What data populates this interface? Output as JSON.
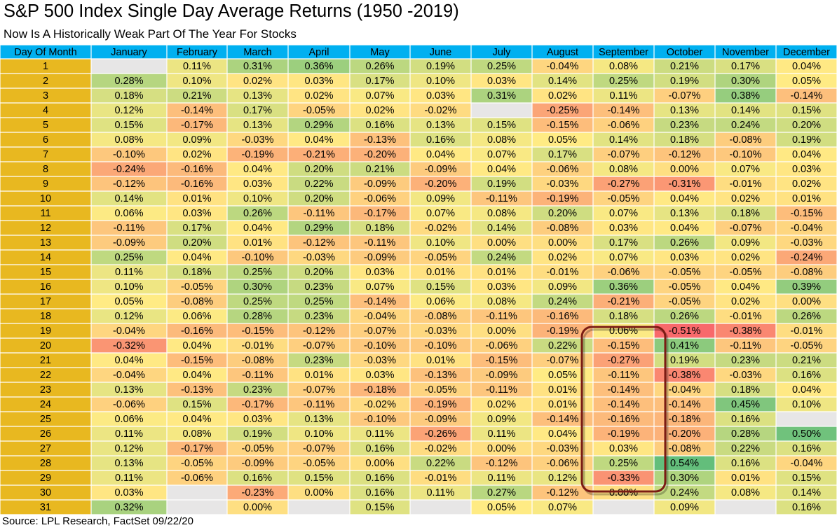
{
  "title": "S&P 500 Index Single Day Average Returns (1950 -2019)",
  "subtitle": "Now Is A Historically Weak Part Of The Year For Stocks",
  "source": "Source: LPL Research, FactSet 09/22/20",
  "colors": {
    "header_bg": "#00b0f0",
    "day_bg": "#e8b820",
    "empty_bg": "#e7e6e6",
    "scale_low": "#f8696b",
    "scale_mid": "#ffeb84",
    "scale_high": "#63be7b",
    "highlight_border": "#7b1c14"
  },
  "chart_data": {
    "type": "table",
    "row_header_label": "Day Of Month",
    "columns": [
      "January",
      "February",
      "March",
      "April",
      "May",
      "June",
      "July",
      "August",
      "September",
      "October",
      "November",
      "December"
    ],
    "days": [
      "1",
      "2",
      "3",
      "4",
      "5",
      "6",
      "7",
      "8",
      "9",
      "10",
      "11",
      "12",
      "13",
      "14",
      "15",
      "16",
      "17",
      "18",
      "19",
      "20",
      "21",
      "22",
      "23",
      "24",
      "25",
      "26",
      "27",
      "28",
      "29",
      "30",
      "31"
    ],
    "rows": [
      [
        "",
        "0.11%",
        "0.31%",
        "0.36%",
        "0.26%",
        "0.19%",
        "0.25%",
        "-0.04%",
        "0.08%",
        "0.21%",
        "0.17%",
        "0.04%"
      ],
      [
        "0.28%",
        "0.10%",
        "0.02%",
        "0.03%",
        "0.17%",
        "0.10%",
        "0.03%",
        "0.14%",
        "0.25%",
        "0.19%",
        "0.30%",
        "0.05%"
      ],
      [
        "0.18%",
        "0.21%",
        "0.13%",
        "0.02%",
        "0.07%",
        "0.03%",
        "0.31%",
        "0.02%",
        "0.11%",
        "-0.07%",
        "0.38%",
        "-0.14%"
      ],
      [
        "0.12%",
        "-0.14%",
        "0.17%",
        "-0.05%",
        "0.02%",
        "-0.02%",
        "",
        "-0.25%",
        "-0.14%",
        "0.13%",
        "0.14%",
        "0.15%"
      ],
      [
        "0.15%",
        "-0.17%",
        "0.13%",
        "0.29%",
        "0.16%",
        "0.13%",
        "0.15%",
        "-0.15%",
        "-0.06%",
        "0.23%",
        "0.24%",
        "0.20%"
      ],
      [
        "0.08%",
        "0.09%",
        "-0.03%",
        "0.04%",
        "-0.13%",
        "0.16%",
        "0.08%",
        "0.05%",
        "0.14%",
        "0.18%",
        "-0.08%",
        "0.19%"
      ],
      [
        "-0.10%",
        "0.02%",
        "-0.19%",
        "-0.21%",
        "-0.20%",
        "0.04%",
        "0.07%",
        "0.17%",
        "-0.07%",
        "-0.12%",
        "-0.10%",
        "0.04%"
      ],
      [
        "-0.24%",
        "-0.16%",
        "0.04%",
        "0.20%",
        "0.21%",
        "-0.09%",
        "0.04%",
        "-0.06%",
        "0.08%",
        "0.00%",
        "0.07%",
        "0.03%"
      ],
      [
        "-0.12%",
        "-0.16%",
        "0.03%",
        "0.22%",
        "-0.09%",
        "-0.20%",
        "0.19%",
        "-0.03%",
        "-0.27%",
        "-0.31%",
        "-0.01%",
        "0.02%"
      ],
      [
        "0.14%",
        "0.01%",
        "0.10%",
        "0.20%",
        "-0.06%",
        "0.09%",
        "-0.11%",
        "-0.19%",
        "-0.05%",
        "0.04%",
        "0.02%",
        "0.01%"
      ],
      [
        "0.06%",
        "0.03%",
        "0.26%",
        "-0.11%",
        "-0.17%",
        "0.07%",
        "0.08%",
        "0.20%",
        "0.07%",
        "0.13%",
        "0.18%",
        "-0.15%"
      ],
      [
        "-0.11%",
        "0.17%",
        "0.04%",
        "0.29%",
        "0.18%",
        "-0.02%",
        "0.14%",
        "-0.08%",
        "0.03%",
        "0.04%",
        "-0.07%",
        "-0.04%"
      ],
      [
        "-0.09%",
        "0.20%",
        "0.01%",
        "-0.12%",
        "-0.11%",
        "0.10%",
        "0.00%",
        "0.00%",
        "0.17%",
        "0.26%",
        "0.09%",
        "-0.03%"
      ],
      [
        "0.25%",
        "0.04%",
        "-0.10%",
        "-0.03%",
        "-0.09%",
        "-0.05%",
        "0.24%",
        "0.02%",
        "0.07%",
        "0.03%",
        "0.02%",
        "-0.24%"
      ],
      [
        "0.11%",
        "0.18%",
        "0.25%",
        "0.20%",
        "0.03%",
        "0.01%",
        "0.01%",
        "-0.01%",
        "-0.06%",
        "-0.05%",
        "-0.05%",
        "-0.08%"
      ],
      [
        "0.10%",
        "-0.05%",
        "0.30%",
        "0.23%",
        "0.07%",
        "0.15%",
        "0.03%",
        "0.09%",
        "0.36%",
        "-0.05%",
        "0.04%",
        "0.39%"
      ],
      [
        "0.05%",
        "-0.08%",
        "0.25%",
        "0.25%",
        "-0.14%",
        "0.06%",
        "0.08%",
        "0.24%",
        "-0.21%",
        "-0.05%",
        "0.02%",
        "0.00%"
      ],
      [
        "0.12%",
        "0.06%",
        "0.28%",
        "0.23%",
        "-0.04%",
        "-0.08%",
        "-0.11%",
        "-0.16%",
        "0.18%",
        "0.26%",
        "-0.01%",
        "0.26%"
      ],
      [
        "-0.04%",
        "-0.16%",
        "-0.15%",
        "-0.12%",
        "-0.07%",
        "-0.03%",
        "0.00%",
        "-0.19%",
        "0.06%",
        "-0.51%",
        "-0.38%",
        "-0.01%"
      ],
      [
        "-0.32%",
        "0.04%",
        "-0.01%",
        "-0.07%",
        "-0.10%",
        "-0.10%",
        "-0.06%",
        "0.22%",
        "-0.15%",
        "0.41%",
        "-0.11%",
        "-0.05%"
      ],
      [
        "0.04%",
        "-0.15%",
        "-0.08%",
        "0.23%",
        "-0.03%",
        "0.01%",
        "-0.15%",
        "-0.07%",
        "-0.27%",
        "0.19%",
        "0.23%",
        "0.21%"
      ],
      [
        "-0.04%",
        "0.04%",
        "-0.11%",
        "0.01%",
        "0.03%",
        "-0.13%",
        "-0.09%",
        "0.05%",
        "-0.11%",
        "-0.38%",
        "-0.03%",
        "0.16%"
      ],
      [
        "0.13%",
        "-0.13%",
        "0.23%",
        "-0.07%",
        "-0.18%",
        "-0.05%",
        "-0.11%",
        "0.01%",
        "-0.14%",
        "-0.04%",
        "0.18%",
        "0.04%"
      ],
      [
        "-0.06%",
        "0.15%",
        "-0.17%",
        "-0.11%",
        "-0.02%",
        "-0.19%",
        "0.02%",
        "0.01%",
        "-0.14%",
        "-0.14%",
        "0.45%",
        "0.10%"
      ],
      [
        "0.06%",
        "0.04%",
        "0.03%",
        "0.13%",
        "-0.10%",
        "-0.09%",
        "0.09%",
        "-0.14%",
        "-0.16%",
        "-0.18%",
        "0.16%",
        ""
      ],
      [
        "0.11%",
        "0.08%",
        "0.19%",
        "0.10%",
        "0.11%",
        "-0.26%",
        "0.11%",
        "0.04%",
        "-0.19%",
        "-0.20%",
        "0.28%",
        "0.50%"
      ],
      [
        "0.12%",
        "-0.17%",
        "-0.05%",
        "-0.07%",
        "0.16%",
        "-0.02%",
        "0.00%",
        "-0.03%",
        "0.03%",
        "-0.08%",
        "0.22%",
        "0.16%"
      ],
      [
        "0.13%",
        "-0.05%",
        "-0.09%",
        "-0.05%",
        "0.00%",
        "0.22%",
        "-0.12%",
        "-0.06%",
        "0.25%",
        "0.54%",
        "0.16%",
        "-0.04%"
      ],
      [
        "0.11%",
        "-0.06%",
        "0.16%",
        "0.15%",
        "0.16%",
        "-0.01%",
        "0.11%",
        "0.12%",
        "-0.33%",
        "0.30%",
        "0.01%",
        "0.15%"
      ],
      [
        "0.03%",
        "",
        "-0.23%",
        "0.00%",
        "0.16%",
        "0.11%",
        "0.27%",
        "-0.12%",
        "0.00%",
        "0.24%",
        "0.08%",
        "0.14%"
      ],
      [
        "0.32%",
        "",
        "0.00%",
        "",
        "0.15%",
        "",
        "0.05%",
        "0.07%",
        "",
        "0.09%",
        "",
        "0.16%"
      ]
    ],
    "highlight": {
      "column": "September",
      "from_day": "19",
      "to_day": "29"
    }
  }
}
